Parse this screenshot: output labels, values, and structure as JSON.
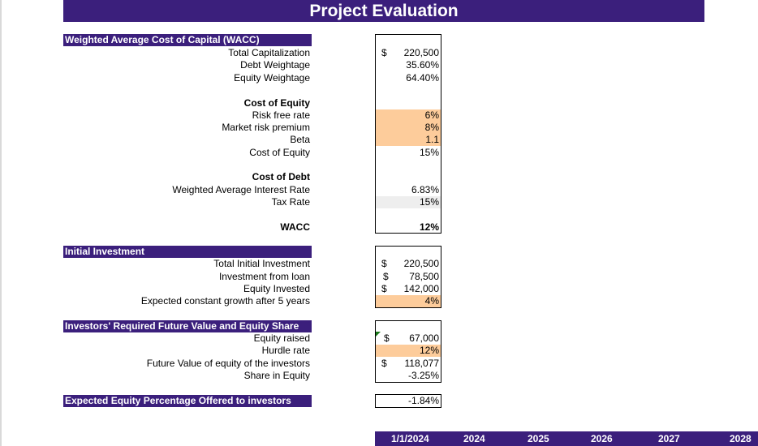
{
  "title": "Project Evaluation",
  "wacc": {
    "header": "Weighted Average Cost of Capital (WACC)",
    "total_cap_label": "Total Capitalization",
    "total_cap_cur": "$",
    "total_cap_value": "220,500",
    "debt_weight_label": "Debt Weightage",
    "debt_weight_value": "35.60%",
    "equity_weight_label": "Equity Weightage",
    "equity_weight_value": "64.40%",
    "cost_of_equity_heading": "Cost of Equity",
    "rf_label": "Risk free rate",
    "rf_value": "6%",
    "mrp_label": "Market risk premium",
    "mrp_value": "8%",
    "beta_label": "Beta",
    "beta_value": "1.1",
    "coe_label": "Cost of Equity",
    "coe_value": "15%",
    "cost_of_debt_heading": "Cost of Debt",
    "wair_label": "Weighted Average Interest Rate",
    "wair_value": "6.83%",
    "tax_label": "Tax Rate",
    "tax_value": "15%",
    "wacc_label": "WACC",
    "wacc_value": "12%"
  },
  "initial_investment": {
    "header": "Initial Investment",
    "total_label": "Total Initial Investment",
    "total_cur": "$",
    "total_value": "220,500",
    "loan_label": "Investment from loan",
    "loan_cur": "$",
    "loan_value": "78,500",
    "equity_label": "Equity Invested",
    "equity_cur": "$",
    "equity_value": "142,000",
    "growth_label": "Expected constant growth after 5 years",
    "growth_value": "4%"
  },
  "investors": {
    "header": "Investors' Required Future Value and Equity Share",
    "raised_label": "Equity raised",
    "raised_cur": "$",
    "raised_value": "67,000",
    "hurdle_label": "Hurdle rate",
    "hurdle_value": "12%",
    "fv_label": "Future Value of equity of the investors",
    "fv_cur": "$",
    "fv_value": "118,077",
    "share_label": "Share in Equity",
    "share_value": "-3.25%"
  },
  "expected": {
    "header": "Expected Equity Percentage Offered to investors",
    "value": "-1.84%"
  },
  "years": [
    "1/1/2024",
    "2024",
    "2025",
    "2026",
    "2027",
    "2028"
  ],
  "colors": {
    "header_bg": "#3b1f7c",
    "input_cell": "#fdcc9b",
    "grey_cell": "#eeeeee"
  }
}
